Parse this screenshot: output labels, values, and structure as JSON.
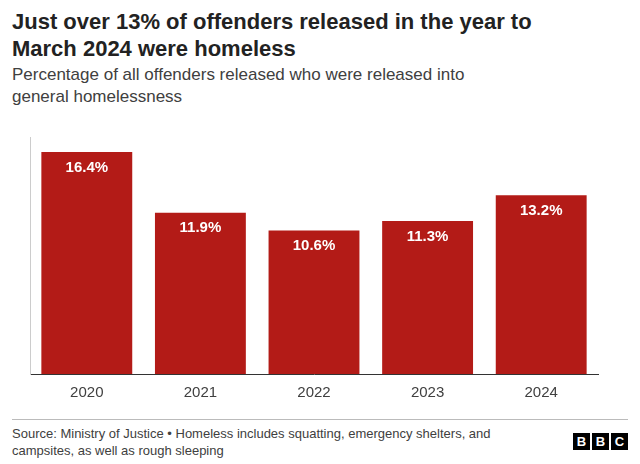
{
  "chart_data": {
    "type": "bar",
    "title": "Just over 13% of offenders released in the year to March 2024 were homeless",
    "subtitle": "Percentage of all offenders released who were released into general homelessness",
    "categories": [
      "2020",
      "2021",
      "2022",
      "2023",
      "2024"
    ],
    "values": [
      16.4,
      11.9,
      10.6,
      11.3,
      13.2
    ],
    "value_labels": [
      "16.4%",
      "11.9%",
      "10.6%",
      "11.3%",
      "13.2%"
    ],
    "data_labels": true,
    "color": "#b31b17",
    "ylim": [
      0,
      17.5
    ],
    "tick_labels": "x",
    "grid": false,
    "footnote": "Source: Ministry of Justice • Homeless includes squatting, emergency shelters, and campsites, as well as rough sleeping",
    "logo": "BBC"
  }
}
